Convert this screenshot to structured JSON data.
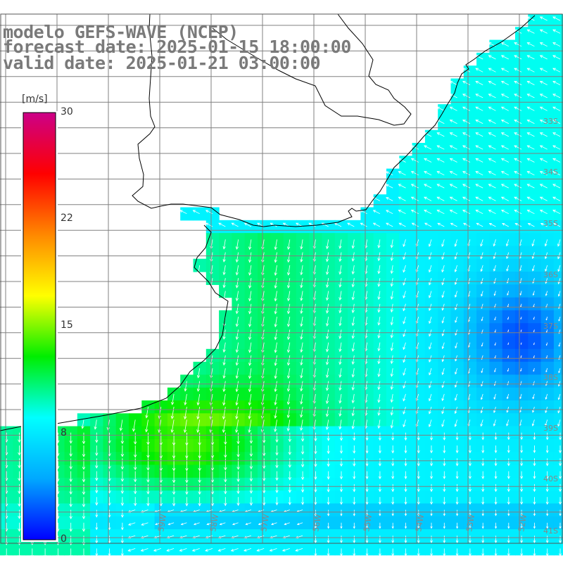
{
  "titles": {
    "line1": "modelo GEFS-WAVE (NCEP)",
    "line2": "forecast date: 2025-01-15 18:00:00",
    "line3": "valid date: 2025-01-21 03:00:00"
  },
  "colorbar": {
    "unit": "[m/s]",
    "ticks": [
      "30",
      "22",
      "15",
      "8",
      "0"
    ],
    "colors": [
      "#0000ff",
      "#00a8ff",
      "#00ffff",
      "#00ee00",
      "#ffff00",
      "#ff8800",
      "#ff0000",
      "#cc0088"
    ]
  },
  "lat_labels": [
    "33S",
    "34S",
    "35S",
    "36S",
    "37S",
    "38S",
    "39S",
    "40S",
    "41S"
  ],
  "lon_labels": [
    "59W",
    "58W",
    "57W",
    "56W",
    "55W",
    "54W",
    "53W",
    "52W",
    "51W"
  ],
  "colors": {
    "land": "#ffffff",
    "coast": "#000000",
    "grid": "#808080",
    "arrow": "#ffffff"
  }
}
